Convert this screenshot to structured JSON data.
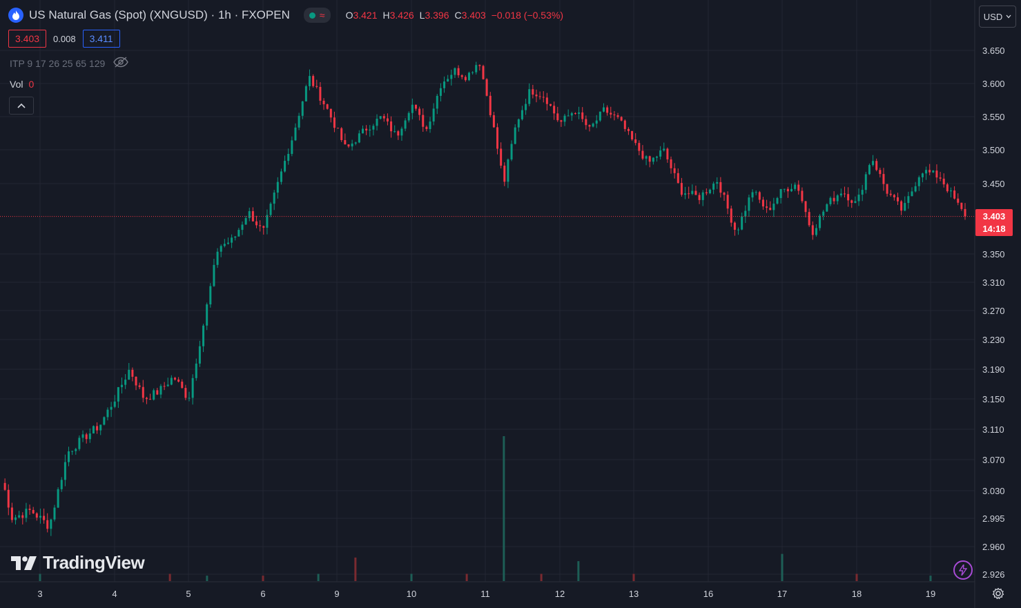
{
  "header": {
    "title": "US Natural Gas (Spot) (XNGUSD) · 1h · FXOPEN",
    "status_wave": "≈",
    "ohlc": [
      {
        "key": "O",
        "value": "3.421"
      },
      {
        "key": "H",
        "value": "3.426"
      },
      {
        "key": "L",
        "value": "3.396"
      },
      {
        "key": "C",
        "value": "3.403"
      }
    ],
    "change": "−0.018 (−0.53%)"
  },
  "quote": {
    "bid": "3.403",
    "spread": "0.008",
    "ask": "3.411"
  },
  "indicator": {
    "label": "ITP 9 17 26 25 65 129"
  },
  "volume": {
    "label": "Vol",
    "value": "0"
  },
  "currency": {
    "label": "USD"
  },
  "brand": {
    "name": "TradingView"
  },
  "current_price": {
    "price": "3.403",
    "countdown": "14:18"
  },
  "colors": {
    "background": "#161a25",
    "up": "#089981",
    "down": "#f23645",
    "grid": "#232632",
    "accent": "#2962ff"
  },
  "chart_data": {
    "type": "candlestick",
    "timeframe": "1h",
    "y_axis_ticks": [
      "3.650",
      "3.600",
      "3.550",
      "3.500",
      "3.450",
      "3.350",
      "3.310",
      "3.270",
      "3.230",
      "3.190",
      "3.150",
      "3.110",
      "3.070",
      "3.030",
      "2.995",
      "2.960",
      "2.926"
    ],
    "y_axis_tick_values": [
      3.65,
      3.6,
      3.55,
      3.5,
      3.45,
      3.35,
      3.31,
      3.27,
      3.23,
      3.19,
      3.15,
      3.11,
      3.07,
      3.03,
      2.995,
      2.96,
      2.926
    ],
    "y_axis_scale": "log",
    "x_axis_ticks": [
      "3",
      "4",
      "5",
      "6",
      "9",
      "10",
      "11",
      "12",
      "13",
      "16",
      "17",
      "18",
      "19"
    ],
    "last_price": 3.403,
    "grid": true,
    "path_points": [
      {
        "x": "2",
        "y": 3.04
      },
      {
        "x": "3",
        "y": 2.995
      },
      {
        "x": "3",
        "y": 3.005
      },
      {
        "x": "3",
        "y": 2.985
      },
      {
        "x": "3",
        "y": 3.08
      },
      {
        "x": "4",
        "y": 3.1
      },
      {
        "x": "4",
        "y": 3.115
      },
      {
        "x": "4",
        "y": 3.15
      },
      {
        "x": "4",
        "y": 3.19
      },
      {
        "x": "4",
        "y": 3.15
      },
      {
        "x": "5",
        "y": 3.16
      },
      {
        "x": "5",
        "y": 3.18
      },
      {
        "x": "5",
        "y": 3.15
      },
      {
        "x": "5",
        "y": 3.25
      },
      {
        "x": "5",
        "y": 3.36
      },
      {
        "x": "6",
        "y": 3.37
      },
      {
        "x": "6",
        "y": 3.41
      },
      {
        "x": "6",
        "y": 3.38
      },
      {
        "x": "6",
        "y": 3.45
      },
      {
        "x": "6",
        "y": 3.52
      },
      {
        "x": "9",
        "y": 3.61
      },
      {
        "x": "9",
        "y": 3.56
      },
      {
        "x": "9",
        "y": 3.5
      },
      {
        "x": "9",
        "y": 3.53
      },
      {
        "x": "10",
        "y": 3.55
      },
      {
        "x": "10",
        "y": 3.52
      },
      {
        "x": "10",
        "y": 3.57
      },
      {
        "x": "10",
        "y": 3.53
      },
      {
        "x": "10",
        "y": 3.6
      },
      {
        "x": "11",
        "y": 3.62
      },
      {
        "x": "11",
        "y": 3.61
      },
      {
        "x": "11",
        "y": 3.635
      },
      {
        "x": "11",
        "y": 3.55
      },
      {
        "x": "11",
        "y": 3.45
      },
      {
        "x": "11",
        "y": 3.54
      },
      {
        "x": "12",
        "y": 3.59
      },
      {
        "x": "12",
        "y": 3.58
      },
      {
        "x": "12",
        "y": 3.54
      },
      {
        "x": "12",
        "y": 3.56
      },
      {
        "x": "12",
        "y": 3.53
      },
      {
        "x": "13",
        "y": 3.56
      },
      {
        "x": "13",
        "y": 3.545
      },
      {
        "x": "13",
        "y": 3.51
      },
      {
        "x": "13",
        "y": 3.48
      },
      {
        "x": "13",
        "y": 3.5
      },
      {
        "x": "16",
        "y": 3.44
      },
      {
        "x": "16",
        "y": 3.43
      },
      {
        "x": "16",
        "y": 3.455
      },
      {
        "x": "16",
        "y": 3.38
      },
      {
        "x": "17",
        "y": 3.44
      },
      {
        "x": "17",
        "y": 3.41
      },
      {
        "x": "17",
        "y": 3.44
      },
      {
        "x": "17",
        "y": 3.45
      },
      {
        "x": "17",
        "y": 3.38
      },
      {
        "x": "18",
        "y": 3.42
      },
      {
        "x": "18",
        "y": 3.44
      },
      {
        "x": "18",
        "y": 3.42
      },
      {
        "x": "18",
        "y": 3.49
      },
      {
        "x": "18",
        "y": 3.44
      },
      {
        "x": "19",
        "y": 3.41
      },
      {
        "x": "19",
        "y": 3.47
      },
      {
        "x": "19",
        "y": 3.46
      },
      {
        "x": "19",
        "y": 3.403
      }
    ],
    "volume_spikes": [
      {
        "x": "3",
        "volume": 4
      },
      {
        "x": "5",
        "volume": 4
      },
      {
        "x": "5",
        "volume": 3
      },
      {
        "x": "6",
        "volume": 3
      },
      {
        "x": "9",
        "volume": 4
      },
      {
        "x": "9",
        "volume": 13
      },
      {
        "x": "10",
        "volume": 4
      },
      {
        "x": "11",
        "volume": 4
      },
      {
        "x": "11",
        "volume": 80
      },
      {
        "x": "12",
        "volume": 4
      },
      {
        "x": "12",
        "volume": 11
      },
      {
        "x": "13",
        "volume": 4
      },
      {
        "x": "17",
        "volume": 15
      },
      {
        "x": "18",
        "volume": 4
      },
      {
        "x": "19",
        "volume": 3
      }
    ]
  }
}
